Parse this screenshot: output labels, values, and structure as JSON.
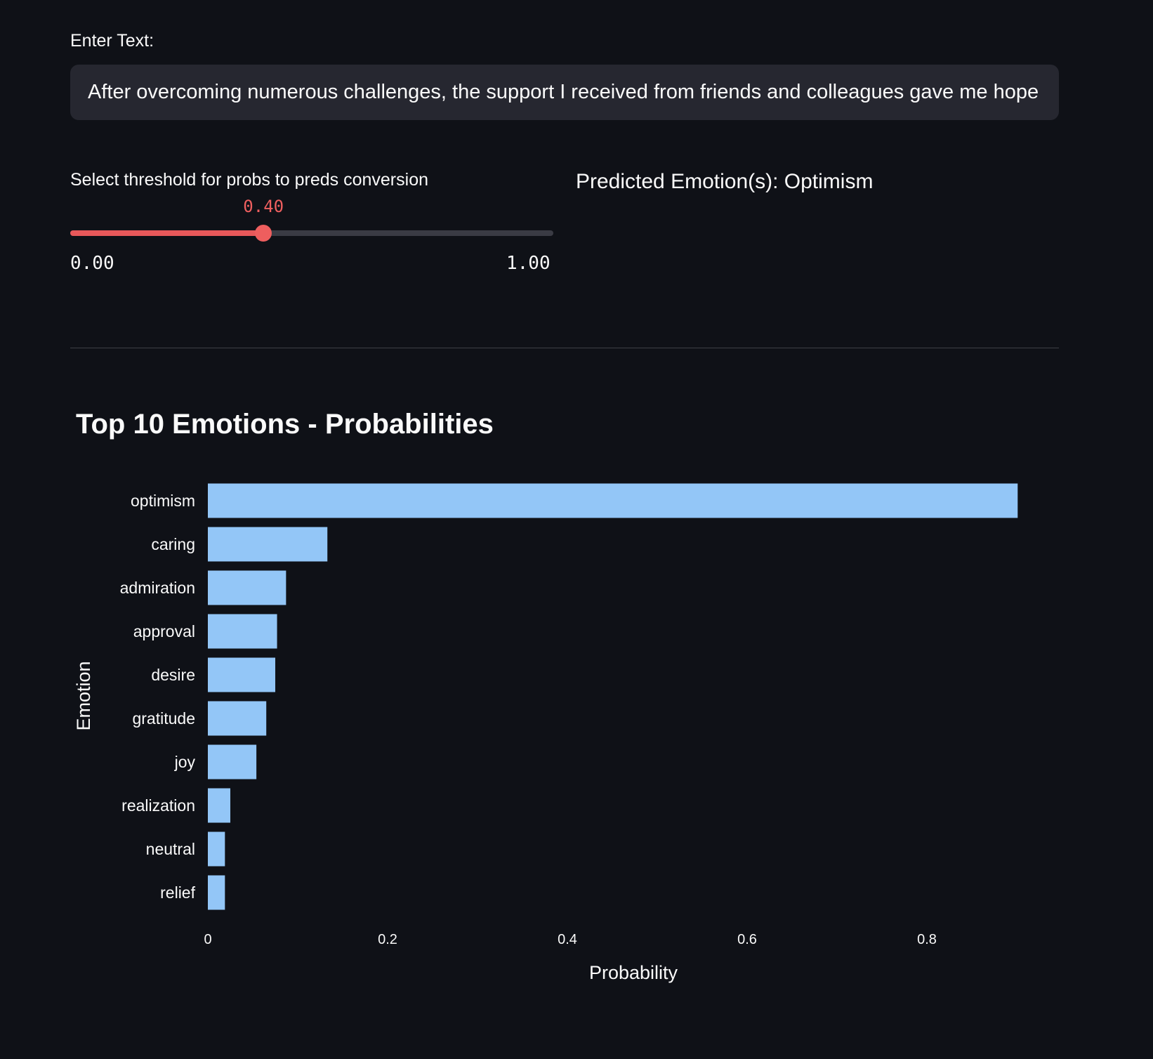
{
  "input": {
    "label": "Enter Text:",
    "value": "After overcoming numerous challenges, the support I received from friends and colleagues gave me hope"
  },
  "slider": {
    "label": "Select threshold for probs to preds conversion",
    "value_text": "0.40",
    "value": 0.4,
    "min_label": "0.00",
    "max_label": "1.00",
    "min": 0,
    "max": 1,
    "fill_color": "#e8585a",
    "thumb_color": "#ee5e5e"
  },
  "prediction": {
    "text": "Predicted Emotion(s): Optimism"
  },
  "chart_data": {
    "type": "bar",
    "orientation": "horizontal",
    "title": "Top 10 Emotions - Probabilities",
    "xlabel": "Probability",
    "ylabel": "Emotion",
    "categories": [
      "optimism",
      "caring",
      "admiration",
      "approval",
      "desire",
      "gratitude",
      "joy",
      "realization",
      "neutral",
      "relief"
    ],
    "values": [
      0.901,
      0.133,
      0.087,
      0.077,
      0.075,
      0.065,
      0.054,
      0.025,
      0.019,
      0.019
    ],
    "xlim": [
      0,
      0.95
    ],
    "xticks": [
      0,
      0.2,
      0.4,
      0.6,
      0.8
    ],
    "xtick_labels": [
      "0",
      "0.2",
      "0.4",
      "0.6",
      "0.8"
    ],
    "bar_color": "#93c6f7",
    "grid": false
  }
}
